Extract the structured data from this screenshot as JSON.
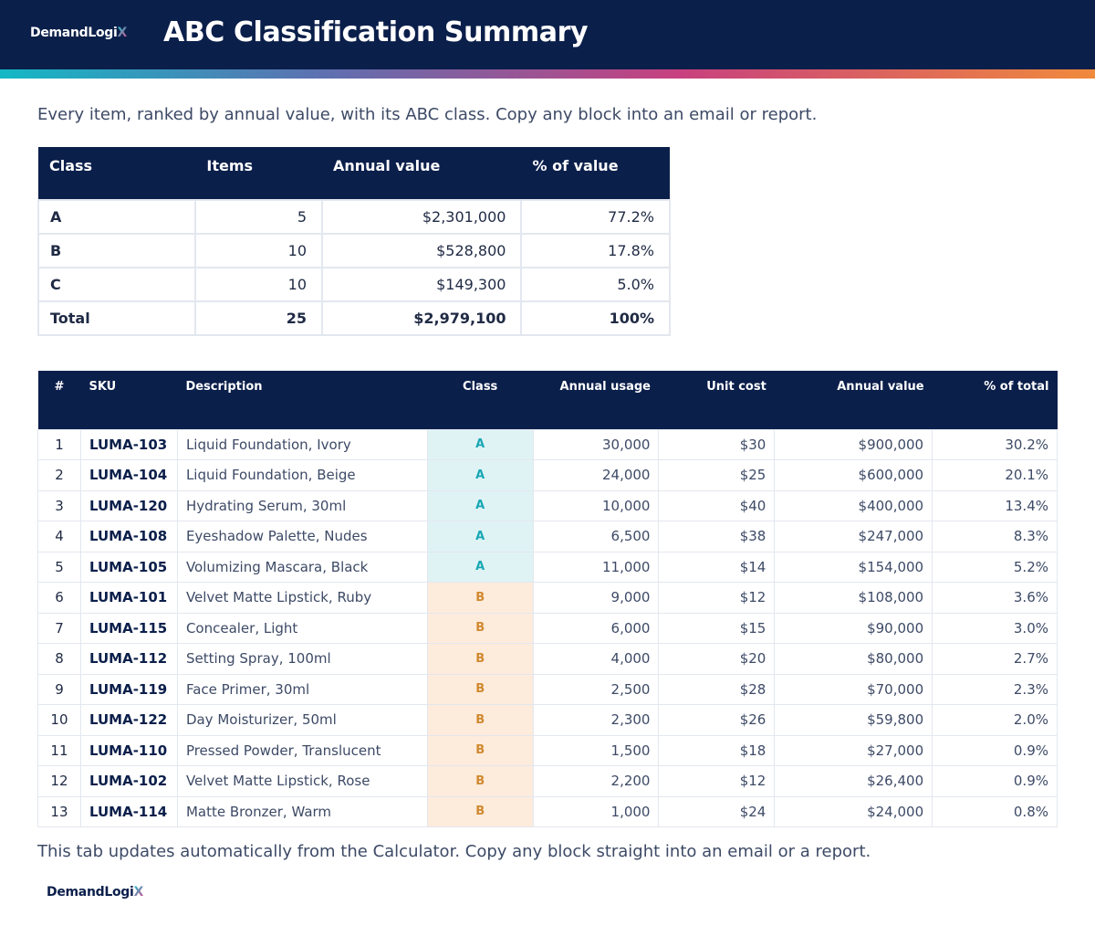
{
  "brand": {
    "name": "DemandLogi",
    "name_x": "X"
  },
  "header": {
    "title": "ABC Classification Summary"
  },
  "intro": "Every item, ranked by annual value, with its ABC class. Copy any block into an email or report.",
  "summary": {
    "headers": [
      "Class",
      "Items",
      "Annual value",
      "% of value"
    ],
    "rows": [
      {
        "cls": "A",
        "items": "5",
        "value": "$2,301,000",
        "pct": "77.2%"
      },
      {
        "cls": "B",
        "items": "10",
        "value": "$528,800",
        "pct": "17.8%"
      },
      {
        "cls": "C",
        "items": "10",
        "value": "$149,300",
        "pct": "5.0%"
      }
    ],
    "total": {
      "label": "Total",
      "items": "25",
      "value": "$2,979,100",
      "pct": "100%"
    }
  },
  "items": {
    "headers": [
      "#",
      "SKU",
      "Description",
      "Class",
      "Annual usage",
      "Unit cost",
      "Annual value",
      "% of total"
    ],
    "rows": [
      {
        "n": "1",
        "sku": "LUMA-103",
        "desc": "Liquid Foundation, Ivory",
        "cls": "A",
        "usage": "30,000",
        "cost": "$30",
        "value": "$900,000",
        "pct": "30.2%"
      },
      {
        "n": "2",
        "sku": "LUMA-104",
        "desc": "Liquid Foundation, Beige",
        "cls": "A",
        "usage": "24,000",
        "cost": "$25",
        "value": "$600,000",
        "pct": "20.1%"
      },
      {
        "n": "3",
        "sku": "LUMA-120",
        "desc": "Hydrating Serum, 30ml",
        "cls": "A",
        "usage": "10,000",
        "cost": "$40",
        "value": "$400,000",
        "pct": "13.4%"
      },
      {
        "n": "4",
        "sku": "LUMA-108",
        "desc": "Eyeshadow Palette, Nudes",
        "cls": "A",
        "usage": "6,500",
        "cost": "$38",
        "value": "$247,000",
        "pct": "8.3%"
      },
      {
        "n": "5",
        "sku": "LUMA-105",
        "desc": "Volumizing Mascara, Black",
        "cls": "A",
        "usage": "11,000",
        "cost": "$14",
        "value": "$154,000",
        "pct": "5.2%"
      },
      {
        "n": "6",
        "sku": "LUMA-101",
        "desc": "Velvet Matte Lipstick, Ruby",
        "cls": "B",
        "usage": "9,000",
        "cost": "$12",
        "value": "$108,000",
        "pct": "3.6%"
      },
      {
        "n": "7",
        "sku": "LUMA-115",
        "desc": "Concealer, Light",
        "cls": "B",
        "usage": "6,000",
        "cost": "$15",
        "value": "$90,000",
        "pct": "3.0%"
      },
      {
        "n": "8",
        "sku": "LUMA-112",
        "desc": "Setting Spray, 100ml",
        "cls": "B",
        "usage": "4,000",
        "cost": "$20",
        "value": "$80,000",
        "pct": "2.7%"
      },
      {
        "n": "9",
        "sku": "LUMA-119",
        "desc": "Face Primer, 30ml",
        "cls": "B",
        "usage": "2,500",
        "cost": "$28",
        "value": "$70,000",
        "pct": "2.3%"
      },
      {
        "n": "10",
        "sku": "LUMA-122",
        "desc": "Day Moisturizer, 50ml",
        "cls": "B",
        "usage": "2,300",
        "cost": "$26",
        "value": "$59,800",
        "pct": "2.0%"
      },
      {
        "n": "11",
        "sku": "LUMA-110",
        "desc": "Pressed Powder, Translucent",
        "cls": "B",
        "usage": "1,500",
        "cost": "$18",
        "value": "$27,000",
        "pct": "0.9%"
      },
      {
        "n": "12",
        "sku": "LUMA-102",
        "desc": "Velvet Matte Lipstick, Rose",
        "cls": "B",
        "usage": "2,200",
        "cost": "$12",
        "value": "$26,400",
        "pct": "0.9%"
      },
      {
        "n": "13",
        "sku": "LUMA-114",
        "desc": "Matte Bronzer, Warm",
        "cls": "B",
        "usage": "1,000",
        "cost": "$24",
        "value": "$24,000",
        "pct": "0.8%"
      }
    ]
  },
  "footer_note": "This tab updates automatically from the Calculator. Copy any block straight into an email or a report.",
  "colors": {
    "header_bg": "#0b1f4b",
    "class_a": "#18a7b5",
    "class_a_bg": "#dff3f4",
    "class_b": "#d0892e",
    "class_b_bg": "#fdebdc"
  }
}
